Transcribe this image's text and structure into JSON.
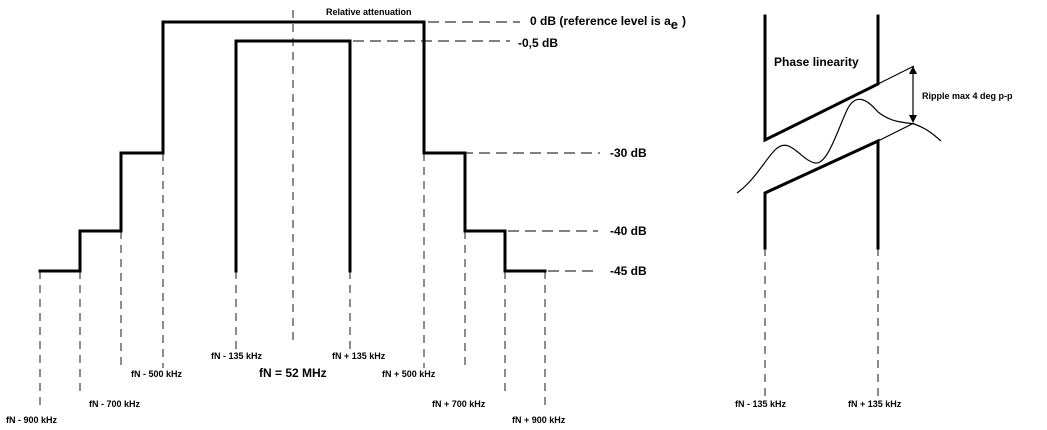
{
  "mask_chart": {
    "title": "Relative attenuation",
    "center_label": "fN = 52 MHz",
    "levels": {
      "ref": "0 dB (reference level is a",
      "ref_sub": "e",
      "ref_close": ")",
      "l05": "-0,5 dB",
      "l30": "-30 dB",
      "l40": "-40 dB",
      "l45": "-45 dB"
    },
    "freqs": {
      "m900": "fN - 900 kHz",
      "m700": "fN - 700 kHz",
      "m500": "fN - 500 kHz",
      "m135": "fN - 135 kHz",
      "p135": "fN + 135 kHz",
      "p500": "fN + 500 kHz",
      "p700": "fN + 700 kHz",
      "p900": "fN + 900 kHz"
    }
  },
  "phase_chart": {
    "title": "Phase linearity",
    "ripple": "Ripple max 4 deg p-p",
    "freqs": {
      "m135": "fN - 135 kHz",
      "p135": "fN + 135 kHz"
    }
  }
}
